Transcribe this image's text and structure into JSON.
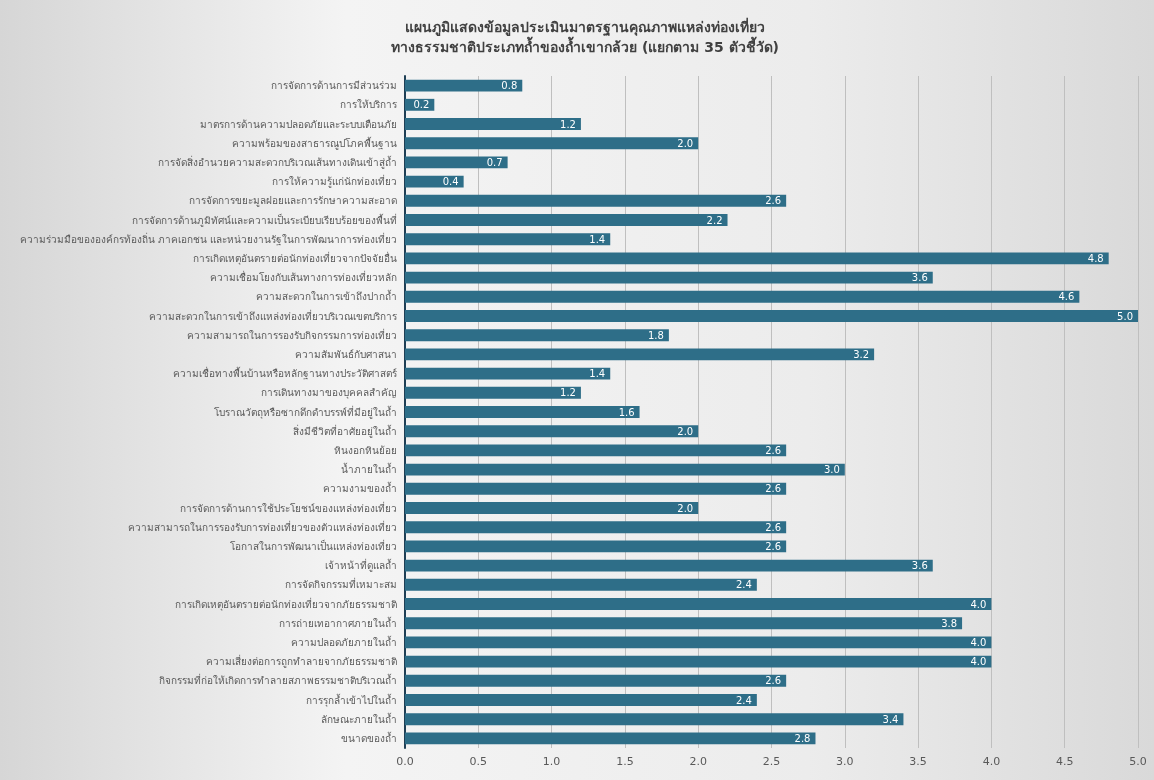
{
  "chart_data": {
    "type": "bar",
    "orientation": "horizontal",
    "title": "แผนภูมิแสดงข้อมูลประเมินมาตรฐานคุณภาพแหล่งท่องเที่ยว\nทางธรรมชาติประเภทถ้ำของถ้ำเขากล้วย (แยกตาม 35 ตัวชี้วัด)",
    "categories": [
      "การจัดการด้านการมีส่วนร่วม",
      "การให้บริการ",
      "มาตรการด้านความปลอดภัยและระบบเตือนภัย",
      "ความพร้อมของสาธารณูปโภคพื้นฐาน",
      "การจัดสิ่งอำนวยความสะดวกบริเวณเส้นทางเดินเข้าสู่ถ้ำ",
      "การให้ความรู้แก่นักท่องเที่ยว",
      "การจัดการขยะมูลฝอยและการรักษาความสะอาด",
      "การจัดการด้านภูมิทัศน์และความเป็นระเบียบเรียบร้อยของพื้นที่",
      "ความร่วมมือขององค์กรท้องถิ่น ภาคเอกชน และหน่วยงานรัฐในการพัฒนาการท่องเที่ยว",
      "การเกิดเหตุอันตรายต่อนักท่องเที่ยวจากปัจจัยอื่น",
      "ความเชื่อมโยงกับเส้นทางการท่องเที่ยวหลัก",
      "ความสะดวกในการเข้าถึงปากถ้ำ",
      "ความสะดวกในการเข้าถึงแหล่งท่องเที่ยวบริเวณเขตบริการ",
      "ความสามารถในการรองรับกิจกรรมการท่องเที่ยว",
      "ความสัมพันธ์กับศาสนา",
      "ความเชื่อทางพื้นบ้านหรือหลักฐานทางประวัติศาสตร์",
      "การเดินทางมาของบุคคลสำคัญ",
      "โบราณวัตถุหรือซากดึกดำบรรพ์ที่มีอยู่ในถ้ำ",
      "สิ่งมีชีวิตที่อาศัยอยู่ในถ้ำ",
      "หินงอกหินย้อย",
      "น้ำภายในถ้ำ",
      "ความงามของถ้ำ",
      "การจัดการด้านการใช้ประโยชน์ของแหล่งท่องเที่ยว",
      "ความสามารถในการรองรับการท่องเที่ยวของตัวแหล่งท่องเที่ยว",
      "โอกาสในการพัฒนาเป็นแหล่งท่องเที่ยว",
      "เจ้าหน้าที่ดูแลถ้ำ",
      "การจัดกิจกรรมที่เหมาะสม",
      "การเกิดเหตุอันตรายต่อนักท่องเที่ยวจากภัยธรรมชาติ",
      "การถ่ายเทอากาศภายในถ้ำ",
      "ความปลอดภัยภายในถ้ำ",
      "ความเสี่ยงต่อการถูกทำลายจากภัยธรรมชาติ",
      "กิจกรรมที่ก่อให้เกิดการทำลายสภาพธรรมชาติบริเวณถ้ำ",
      "การรุกล้ำเข้าไปในถ้ำ",
      "ลักษณะภายในถ้ำ",
      "ขนาดของถ้ำ"
    ],
    "values": [
      0.8,
      0.2,
      1.2,
      2.0,
      0.7,
      0.4,
      2.6,
      2.2,
      1.4,
      4.8,
      3.6,
      4.6,
      5.0,
      1.8,
      3.2,
      1.4,
      1.2,
      1.6,
      2.0,
      2.6,
      3.0,
      2.6,
      2.0,
      2.6,
      2.6,
      3.6,
      2.4,
      4.0,
      3.8,
      4.0,
      4.0,
      2.6,
      2.4,
      3.4,
      2.8
    ],
    "value_labels": [
      "0.8",
      "0.2",
      "1.2",
      "2.0",
      "0.7",
      "0.4",
      "2.6",
      "2.2",
      "1.4",
      "4.8",
      "3.6",
      "4.6",
      "5.0",
      "1.8",
      "3.2",
      "1.4",
      "1.2",
      "1.6",
      "2.0",
      "2.6",
      "3.0",
      "2.6",
      "2.0",
      "2.6",
      "2.6",
      "3.6",
      "2.4",
      "4.0",
      "3.8",
      "4.0",
      "4.0",
      "2.6",
      "2.4",
      "3.4",
      "2.8"
    ],
    "color": "#2e6e88",
    "xlim": [
      0,
      5
    ],
    "xticks": [
      {
        "value": 0,
        "label": "0.0"
      },
      {
        "value": 0.5,
        "label": "0.5"
      },
      {
        "value": 1,
        "label": "1.0"
      },
      {
        "value": 1.5,
        "label": "1.5"
      },
      {
        "value": 2,
        "label": "2.0"
      },
      {
        "value": 2.5,
        "label": "2.5"
      },
      {
        "value": 3,
        "label": "3.0"
      },
      {
        "value": 3.5,
        "label": "3.5"
      },
      {
        "value": 4,
        "label": "4.0"
      },
      {
        "value": 4.5,
        "label": "4.5"
      },
      {
        "value": 5,
        "label": "5.0"
      }
    ],
    "grid": "x"
  }
}
